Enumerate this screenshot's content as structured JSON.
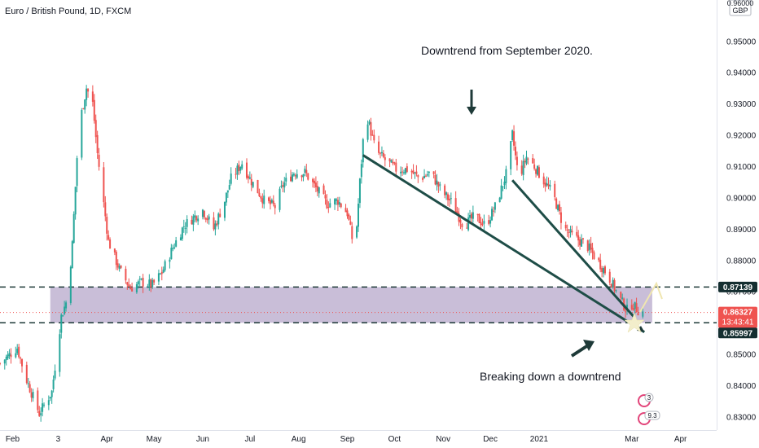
{
  "header": {
    "symbol_title": "Euro / British Pound, 1D, FXCM"
  },
  "price_axis": {
    "currency": "GBP",
    "top_partial_label": "0.96000"
  },
  "annotations": {
    "downtrend_text": "Downtrend from September 2020.",
    "breaking_text": "Breaking down a downtrend"
  },
  "price_tags": {
    "upper": {
      "label": "0.87139",
      "value": 0.87139
    },
    "last": {
      "label": "0.86327",
      "value": 0.86327
    },
    "countdown": "13:43:41",
    "lower": {
      "label": "0.85997",
      "value": 0.85997
    }
  },
  "badges": {
    "ideas_count": "3",
    "comments_count": "9.3"
  },
  "colors": {
    "up": "#26a69a",
    "down": "#ef5350",
    "zone": "#9c89b8",
    "trendline": "#1e4d47",
    "arrow_light": "#f5eec6",
    "label_bg": "#142e30",
    "last_tag": "#ef5350"
  },
  "chart_data": {
    "type": "candlestick",
    "title": "Euro / British Pound, 1D, FXCM",
    "ylim": [
      0.827,
      0.961
    ],
    "y_ticks": [
      "0.96000",
      "0.95000",
      "0.94000",
      "0.93000",
      "0.92000",
      "0.91000",
      "0.90000",
      "0.89000",
      "0.88000",
      "0.87000",
      "0.86000",
      "0.85000",
      "0.84000",
      "0.83000"
    ],
    "x_ticks": [
      "Feb",
      "3",
      "Apr",
      "May",
      "Jun",
      "Jul",
      "Aug",
      "Sep",
      "Oct",
      "Nov",
      "Dec",
      "2021",
      "Mar",
      "Apr"
    ],
    "x_dates": [
      "2020-02-01",
      "2020-03-01",
      "2020-04-01",
      "2020-05-01",
      "2020-06-01",
      "2020-07-01",
      "2020-08-01",
      "2020-09-01",
      "2020-10-01",
      "2020-11-01",
      "2020-12-01",
      "2021-01-01",
      "2021-03-01",
      "2021-04-01"
    ],
    "x_range": [
      "2020-01-24",
      "2021-04-24"
    ],
    "grid": false,
    "path": [
      [
        "2020-01-24",
        0.847
      ],
      [
        "2020-02-04",
        0.852
      ],
      [
        "2020-02-09",
        0.843
      ],
      [
        "2020-02-18",
        0.831
      ],
      [
        "2020-02-26",
        0.838
      ],
      [
        "2020-03-03",
        0.862
      ],
      [
        "2020-03-07",
        0.868
      ],
      [
        "2020-03-10",
        0.885
      ],
      [
        "2020-03-14",
        0.922
      ],
      [
        "2020-03-19",
        0.935
      ],
      [
        "2020-03-23",
        0.93
      ],
      [
        "2020-03-26",
        0.914
      ],
      [
        "2020-04-02",
        0.886
      ],
      [
        "2020-04-09",
        0.877
      ],
      [
        "2020-04-16",
        0.871
      ],
      [
        "2020-04-23",
        0.873
      ],
      [
        "2020-04-30",
        0.872
      ],
      [
        "2020-05-06",
        0.876
      ],
      [
        "2020-05-13",
        0.884
      ],
      [
        "2020-05-20",
        0.891
      ],
      [
        "2020-05-27",
        0.894
      ],
      [
        "2020-06-01",
        0.896
      ],
      [
        "2020-06-08",
        0.89
      ],
      [
        "2020-06-15",
        0.899
      ],
      [
        "2020-06-19",
        0.906
      ],
      [
        "2020-06-26",
        0.911
      ],
      [
        "2020-07-01",
        0.906
      ],
      [
        "2020-07-10",
        0.899
      ],
      [
        "2020-07-17",
        0.897
      ],
      [
        "2020-07-22",
        0.904
      ],
      [
        "2020-07-29",
        0.908
      ],
      [
        "2020-08-05",
        0.908
      ],
      [
        "2020-08-12",
        0.903
      ],
      [
        "2020-08-19",
        0.898
      ],
      [
        "2020-08-26",
        0.899
      ],
      [
        "2020-09-01",
        0.895
      ],
      [
        "2020-09-04",
        0.887
      ],
      [
        "2020-09-07",
        0.891
      ],
      [
        "2020-09-09",
        0.905
      ],
      [
        "2020-09-11",
        0.918
      ],
      [
        "2020-09-14",
        0.925
      ],
      [
        "2020-09-19",
        0.915
      ],
      [
        "2020-09-25",
        0.912
      ],
      [
        "2020-10-02",
        0.909
      ],
      [
        "2020-10-10",
        0.909
      ],
      [
        "2020-10-17",
        0.906
      ],
      [
        "2020-10-24",
        0.908
      ],
      [
        "2020-10-31",
        0.902
      ],
      [
        "2020-11-07",
        0.898
      ],
      [
        "2020-11-14",
        0.891
      ],
      [
        "2020-11-21",
        0.894
      ],
      [
        "2020-11-28",
        0.891
      ],
      [
        "2020-12-05",
        0.898
      ],
      [
        "2020-12-12",
        0.909
      ],
      [
        "2020-12-15",
        0.92
      ],
      [
        "2020-12-19",
        0.906
      ],
      [
        "2020-12-24",
        0.913
      ],
      [
        "2020-12-29",
        0.91
      ],
      [
        "2021-01-03",
        0.906
      ],
      [
        "2021-01-10",
        0.901
      ],
      [
        "2021-01-17",
        0.89
      ],
      [
        "2021-01-24",
        0.887
      ],
      [
        "2021-01-31",
        0.885
      ],
      [
        "2021-02-07",
        0.88
      ],
      [
        "2021-02-14",
        0.875
      ],
      [
        "2021-02-21",
        0.868
      ],
      [
        "2021-02-26",
        0.864
      ],
      [
        "2021-03-01",
        0.866
      ],
      [
        "2021-03-05",
        0.864
      ],
      [
        "2021-03-08",
        0.8633
      ]
    ],
    "zone": {
      "top": 0.87139,
      "bottom": 0.85997,
      "start": "2020-02-25",
      "end": "2021-03-14"
    },
    "levels": [
      0.87139,
      0.85997
    ],
    "last_price": 0.86327,
    "trendlines": [
      {
        "from": [
          "2020-09-11",
          0.9135
        ],
        "to": [
          "2021-03-09",
          0.857
        ]
      },
      {
        "from": [
          "2020-12-15",
          0.9055
        ],
        "to": [
          "2021-03-03",
          0.8615
        ]
      }
    ]
  }
}
